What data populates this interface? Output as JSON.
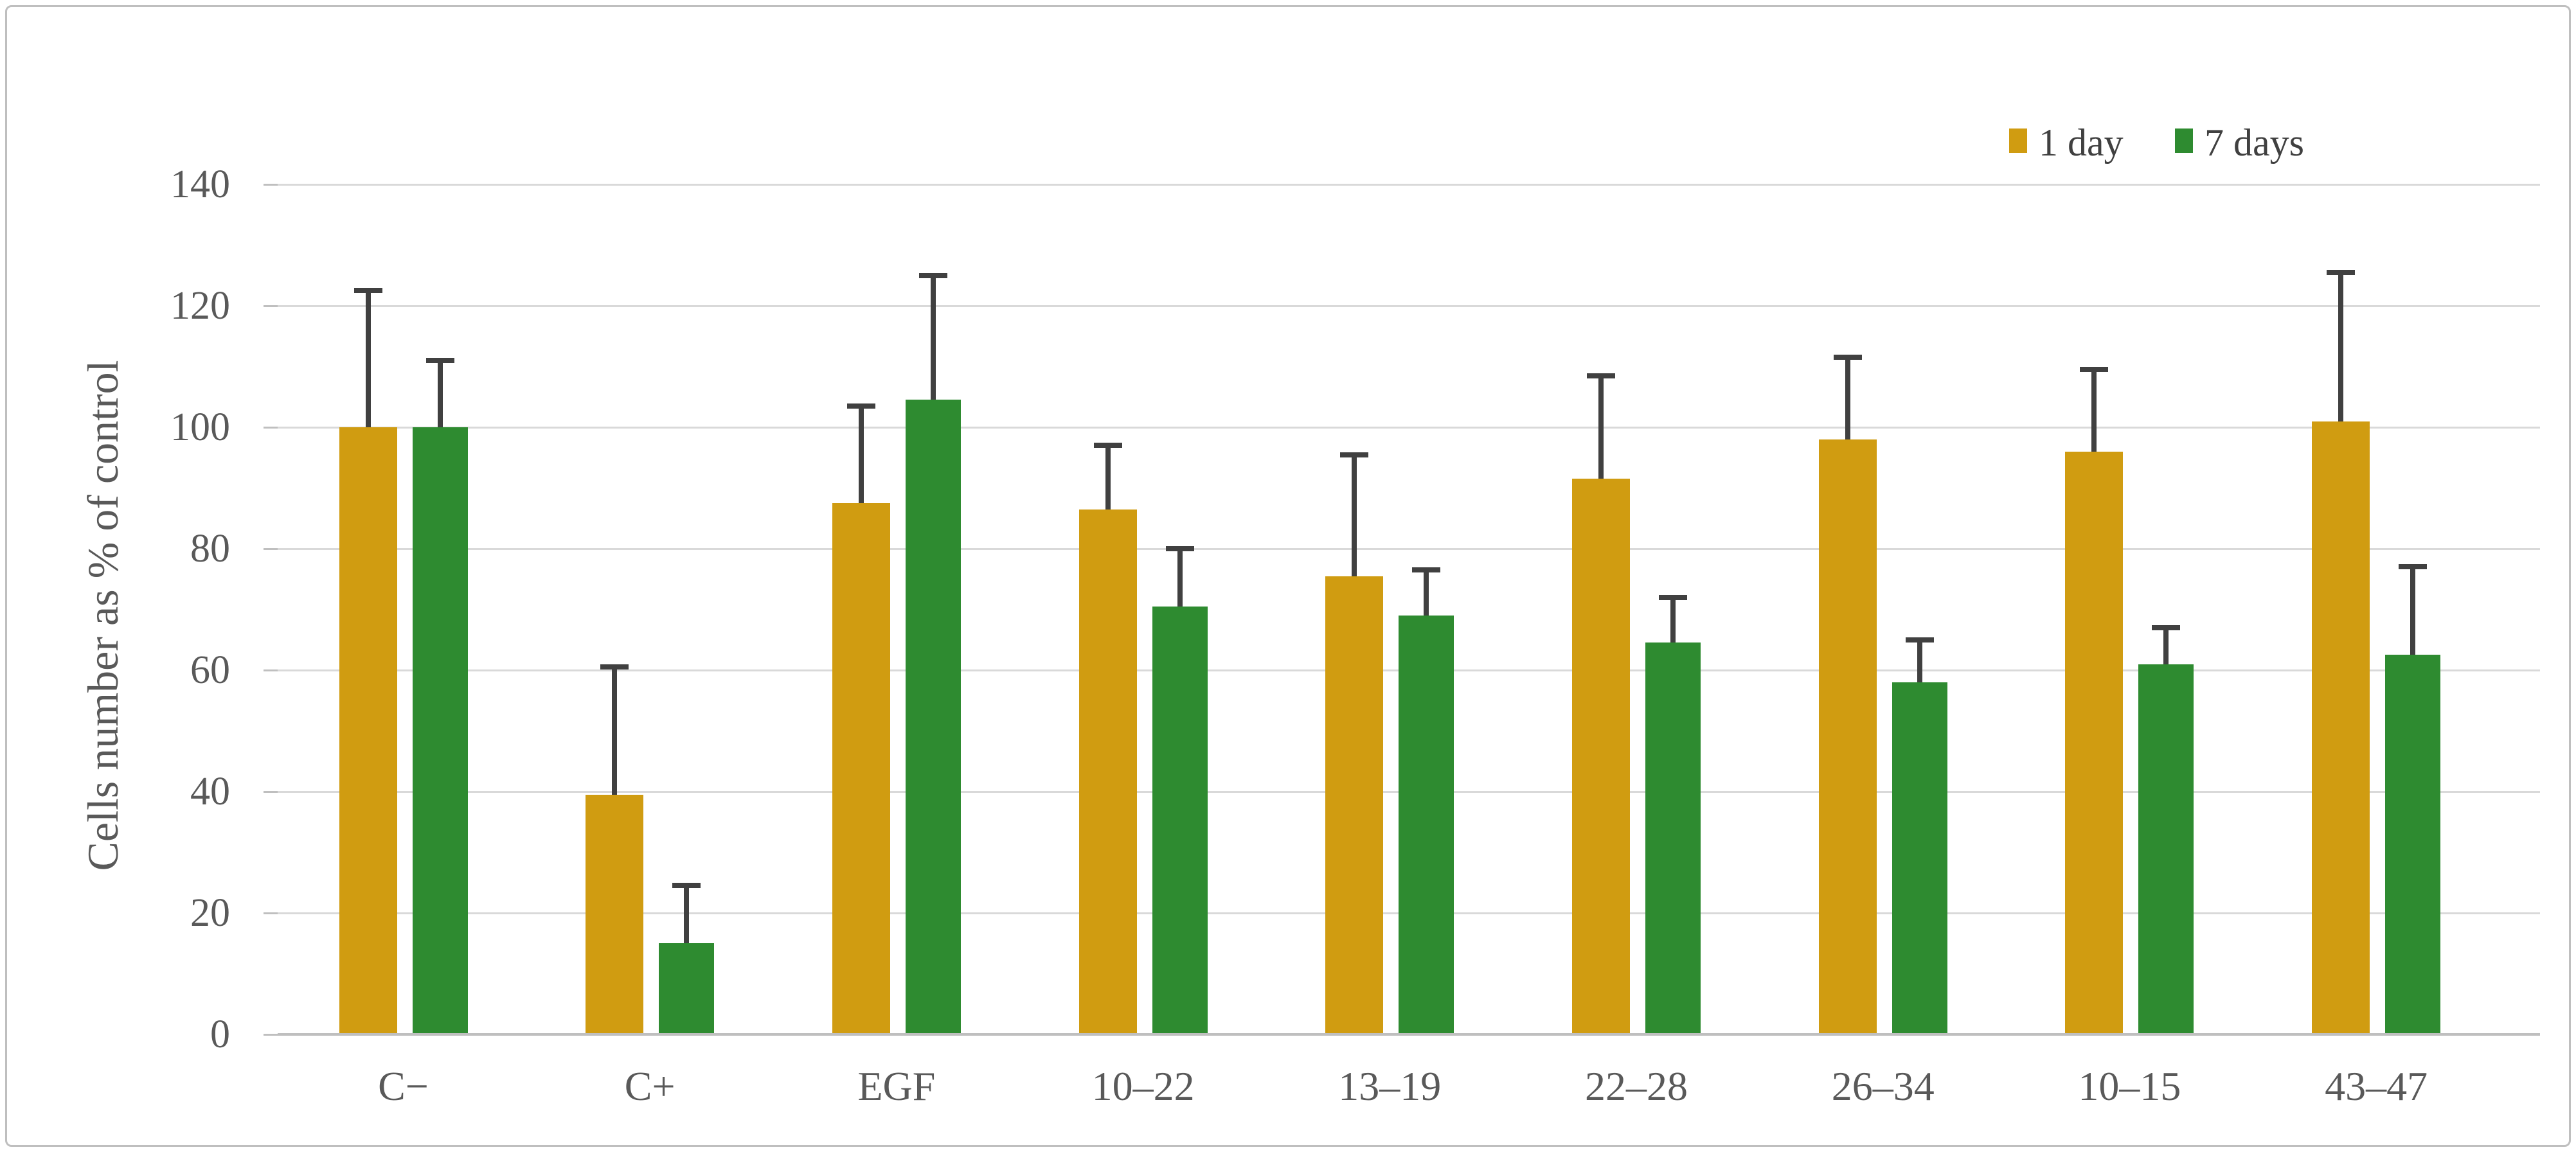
{
  "figure": {
    "background": "#FFFFFF",
    "border_color": "#BFBFBF"
  },
  "chart_data": {
    "type": "bar",
    "title": "",
    "xlabel": "",
    "ylabel": "Cells number as % of control",
    "categories": [
      "C−",
      "C+",
      "EGF",
      "10–22",
      "13–19",
      "22–28",
      "26–34",
      "10–15",
      "43–47"
    ],
    "series": [
      {
        "name": "1 day",
        "color": "#D09C11",
        "values": [
          100,
          39.5,
          87.5,
          86.5,
          75.5,
          91.5,
          98,
          96,
          101
        ],
        "error_plus": [
          22.5,
          21,
          16,
          10.5,
          20,
          17,
          13.5,
          13.5,
          24.5
        ]
      },
      {
        "name": "7 days",
        "color": "#2E8B30",
        "values": [
          100,
          15,
          104.5,
          70.5,
          69,
          64.5,
          58,
          61,
          62.5
        ],
        "error_plus": [
          11,
          9.5,
          20.5,
          9.5,
          7.5,
          7.5,
          7,
          6,
          14.5
        ]
      }
    ],
    "ylim": [
      0,
      140
    ],
    "ytick_step": 20,
    "grid": "horizontal",
    "legend_position": "top-right",
    "error_bar_color": "#404040",
    "gridline_color": "#D9D9D9",
    "axis_line_color": "#BFBFBF",
    "tick_label_color": "#595959",
    "axis_title_color": "#595959"
  }
}
